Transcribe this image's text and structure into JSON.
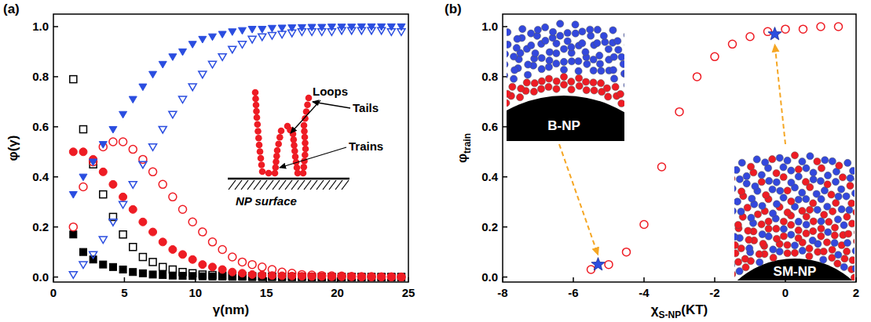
{
  "chart_data": [
    {
      "type": "scatter",
      "panel": "(a)",
      "xlabel": "γ(nm)",
      "ylabel": "φ(γ)",
      "xlim": [
        0,
        25
      ],
      "xticks": [
        0,
        5,
        10,
        15,
        20,
        25
      ],
      "ylim": [
        -0.02,
        1.05
      ],
      "yticks": [
        {
          "value": 0,
          "label": "0.0"
        },
        0.2,
        0.4,
        0.6,
        0.8,
        {
          "value": 1,
          "label": "1.0"
        }
      ],
      "inset_labels": [
        "Loops",
        "Tails",
        "Trains",
        "NP surface"
      ],
      "x": [
        1.4,
        2.1,
        2.8,
        3.5,
        4.2,
        4.9,
        5.6,
        6.3,
        7.0,
        7.7,
        8.4,
        9.1,
        9.8,
        10.5,
        11.2,
        11.9,
        12.6,
        13.3,
        14.0,
        14.7,
        15.4,
        16.1,
        16.8,
        17.5,
        18.2,
        18.9,
        19.6,
        20.3,
        21.0,
        21.7,
        22.4,
        23.1,
        23.8,
        24.5
      ],
      "series": [
        {
          "color": "#000000",
          "marker": "open-square",
          "values": [
            0.79,
            0.59,
            0.45,
            0.33,
            0.24,
            0.17,
            0.12,
            0.08,
            0.06,
            0.04,
            0.03,
            0.02,
            0.015,
            0.01,
            0.008,
            0.006,
            0.005,
            0.004,
            0.003,
            0.002,
            0.002,
            0.001,
            0.001,
            0.001,
            0,
            0,
            0,
            0,
            0,
            0,
            0,
            0,
            0,
            0
          ]
        },
        {
          "color": "#000000",
          "marker": "square",
          "values": [
            0.17,
            0.1,
            0.07,
            0.05,
            0.04,
            0.03,
            0.02,
            0.015,
            0.01,
            0.008,
            0.006,
            0.005,
            0.004,
            0.003,
            0.002,
            0.002,
            0.001,
            0.001,
            0,
            0,
            0,
            0,
            0,
            0,
            0,
            0,
            0,
            0,
            0,
            0,
            0,
            0,
            0,
            0
          ]
        },
        {
          "color": "#ee1c24",
          "marker": "circle",
          "values": [
            0.5,
            0.5,
            0.47,
            0.42,
            0.37,
            0.32,
            0.27,
            0.22,
            0.18,
            0.14,
            0.11,
            0.09,
            0.07,
            0.05,
            0.04,
            0.03,
            0.02,
            0.015,
            0.01,
            0.008,
            0.006,
            0.005,
            0.004,
            0.003,
            0.002,
            0.002,
            0.001,
            0.001,
            0.001,
            0,
            0,
            0,
            0,
            0
          ]
        },
        {
          "color": "#ee1c24",
          "marker": "open-circle",
          "values": [
            0.2,
            0.36,
            0.46,
            0.52,
            0.54,
            0.54,
            0.51,
            0.47,
            0.42,
            0.37,
            0.32,
            0.27,
            0.22,
            0.18,
            0.14,
            0.11,
            0.08,
            0.06,
            0.05,
            0.04,
            0.03,
            0.02,
            0.015,
            0.01,
            0.008,
            0.006,
            0.005,
            0.004,
            0.003,
            0.002,
            0.002,
            0.001,
            0.001,
            0
          ]
        },
        {
          "color": "#2a4de0",
          "marker": "triangle-down",
          "values": [
            0.33,
            0.4,
            0.46,
            0.53,
            0.59,
            0.65,
            0.71,
            0.76,
            0.81,
            0.85,
            0.88,
            0.9,
            0.93,
            0.95,
            0.96,
            0.97,
            0.98,
            0.985,
            0.99,
            0.99,
            0.994,
            0.995,
            0.996,
            0.997,
            0.998,
            0.998,
            0.999,
            0.999,
            0.999,
            1.0,
            1.0,
            1.0,
            1.0,
            1.0
          ]
        },
        {
          "color": "#2a4de0",
          "marker": "open-triangle-down",
          "values": [
            0.01,
            0.05,
            0.09,
            0.15,
            0.22,
            0.29,
            0.37,
            0.45,
            0.52,
            0.59,
            0.65,
            0.71,
            0.76,
            0.81,
            0.85,
            0.88,
            0.91,
            0.93,
            0.95,
            0.96,
            0.965,
            0.97,
            0.975,
            0.98,
            0.98,
            0.98,
            0.98,
            0.985,
            0.985,
            0.985,
            0.985,
            0.985,
            0.98,
            0.98
          ]
        }
      ]
    },
    {
      "type": "scatter",
      "panel": "(b)",
      "xlabel": {
        "text": "χ",
        "sub": "S-NP",
        "suffix": "(KT)"
      },
      "ylabel": {
        "text": "φ",
        "sub": "train"
      },
      "xlim": [
        -8,
        2
      ],
      "xticks": [
        -8,
        -6,
        -4,
        -2,
        0,
        2
      ],
      "ylim": [
        -0.02,
        1.05
      ],
      "yticks": [
        {
          "value": 0,
          "label": "0.0"
        },
        0.2,
        0.4,
        0.6,
        0.8,
        {
          "value": 1,
          "label": "1.0"
        }
      ],
      "inset_labels": [
        "B-NP",
        "SM-NP"
      ],
      "series": [
        {
          "color": "#ee1c24",
          "marker": "open-circle",
          "x": [
            -5.5,
            -5.0,
            -4.5,
            -4.0,
            -3.5,
            -3.0,
            -2.5,
            -2.0,
            -1.5,
            -1.0,
            -0.5,
            0,
            0.5,
            1.0,
            1.5
          ],
          "values": [
            0.03,
            0.05,
            0.1,
            0.21,
            0.44,
            0.66,
            0.8,
            0.88,
            0.93,
            0.96,
            0.98,
            0.99,
            0.99,
            1.0,
            1.0
          ]
        },
        {
          "color": "#2a4de0",
          "marker": "star",
          "x": [
            -5.3,
            -0.3
          ],
          "values": [
            0.05,
            0.97
          ]
        }
      ]
    }
  ]
}
